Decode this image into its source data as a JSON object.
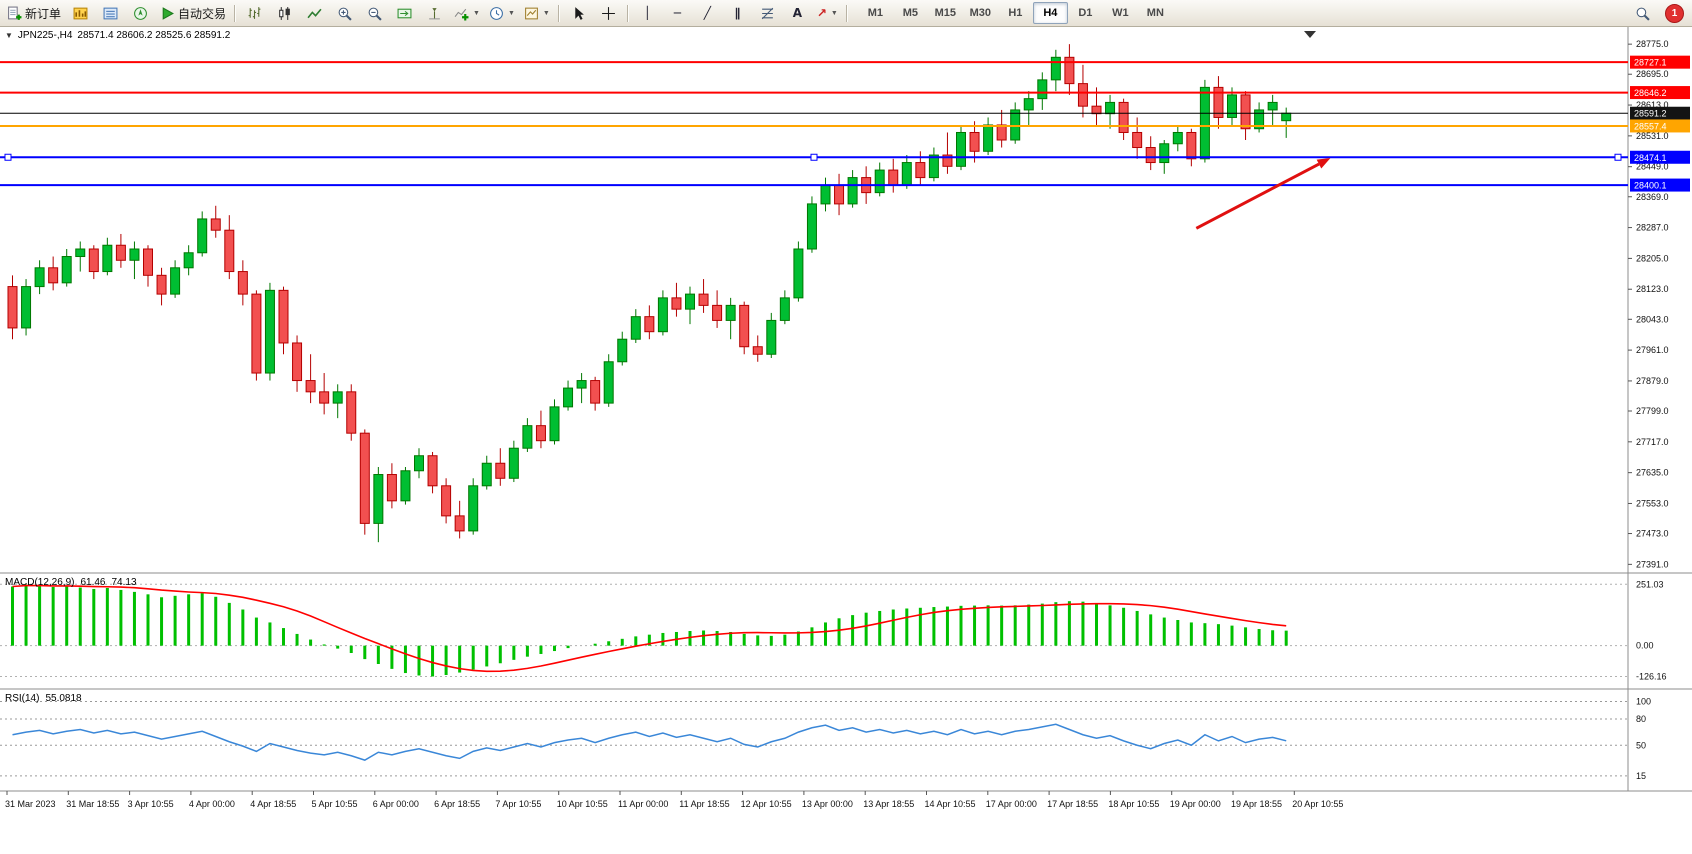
{
  "toolbar": {
    "new_order_label": "新订单",
    "auto_trading_label": "自动交易",
    "timeframes": [
      {
        "label": "M1",
        "active": false
      },
      {
        "label": "M5",
        "active": false
      },
      {
        "label": "M15",
        "active": false
      },
      {
        "label": "M30",
        "active": false
      },
      {
        "label": "H1",
        "active": false
      },
      {
        "label": "H4",
        "active": true
      },
      {
        "label": "D1",
        "active": false
      },
      {
        "label": "W1",
        "active": false
      },
      {
        "label": "MN",
        "active": false
      }
    ],
    "notification_count": "1"
  },
  "icons": {
    "collapse": "▼",
    "caret": "▼",
    "vertical_line": "│",
    "horizontal_line": "─",
    "trendline": "╱",
    "channel": "∥",
    "text_tool": "A",
    "arrow_tool": "↗",
    "crosshair": "+"
  },
  "chart": {
    "symbol_period": "JPN225-,H4",
    "ohlc": "28571.4 28606.2 28525.6 28591.2"
  },
  "chart_data": {
    "type": "candlestick",
    "symbol": "JPN225-",
    "timeframe": "H4",
    "up_color": "#00BE32",
    "up_border": "#007700",
    "down_color": "#F25050",
    "down_border": "#B40000",
    "y_scale": {
      "max": 28810,
      "min": 27368
    },
    "y_axis_ticks": [
      "28775.0",
      "28695.0",
      "28613.0",
      "28531.0",
      "28449.0",
      "28369.0",
      "28287.0",
      "28205.0",
      "28123.0",
      "28043.0",
      "27961.0",
      "27879.0",
      "27799.0",
      "27717.0",
      "27635.0",
      "27553.0",
      "27473.0",
      "27391.0"
    ],
    "price_lines": [
      {
        "price": 28727.1,
        "label": "28727.1",
        "color": "#FF0000",
        "width": 2
      },
      {
        "price": 28646.2,
        "label": "28646.2",
        "color": "#FF0000",
        "width": 2
      },
      {
        "price": 28591.2,
        "label": "28591.2",
        "color": "#000000",
        "width": 1,
        "badge": "#141414",
        "current": true
      },
      {
        "price": 28557.4,
        "label": "28557.4",
        "color": "#FFA500",
        "width": 2
      },
      {
        "price": 28474.1,
        "label": "28474.1",
        "color": "#0000FF",
        "width": 2,
        "selected": true
      },
      {
        "price": 28400.1,
        "label": "28400.1",
        "color": "#0000FF",
        "width": 2
      }
    ],
    "arrow": {
      "color": "#E01010",
      "from": {
        "bar": 87.7,
        "price": 28285
      },
      "to": {
        "bar": 97.6,
        "price": 28472
      }
    },
    "candles": [
      [
        28130,
        28160,
        27990,
        28020
      ],
      [
        28020,
        28150,
        28000,
        28130
      ],
      [
        28130,
        28200,
        28110,
        28180
      ],
      [
        28180,
        28210,
        28120,
        28140
      ],
      [
        28140,
        28230,
        28130,
        28210
      ],
      [
        28210,
        28250,
        28170,
        28230
      ],
      [
        28230,
        28240,
        28150,
        28170
      ],
      [
        28170,
        28260,
        28160,
        28240
      ],
      [
        28240,
        28270,
        28180,
        28200
      ],
      [
        28200,
        28250,
        28150,
        28230
      ],
      [
        28230,
        28240,
        28130,
        28160
      ],
      [
        28160,
        28180,
        28080,
        28110
      ],
      [
        28110,
        28200,
        28100,
        28180
      ],
      [
        28180,
        28240,
        28160,
        28220
      ],
      [
        28220,
        28330,
        28210,
        28310
      ],
      [
        28310,
        28345,
        28260,
        28280
      ],
      [
        28280,
        28320,
        28150,
        28170
      ],
      [
        28170,
        28200,
        28080,
        28110
      ],
      [
        28110,
        28120,
        27880,
        27900
      ],
      [
        27900,
        28140,
        27880,
        28120
      ],
      [
        28120,
        28130,
        27950,
        27980
      ],
      [
        27980,
        28000,
        27850,
        27880
      ],
      [
        27880,
        27950,
        27820,
        27850
      ],
      [
        27850,
        27900,
        27790,
        27820
      ],
      [
        27820,
        27870,
        27780,
        27850
      ],
      [
        27850,
        27870,
        27720,
        27740
      ],
      [
        27740,
        27750,
        27470,
        27500
      ],
      [
        27500,
        27650,
        27450,
        27630
      ],
      [
        27630,
        27660,
        27540,
        27560
      ],
      [
        27560,
        27650,
        27550,
        27640
      ],
      [
        27640,
        27700,
        27620,
        27680
      ],
      [
        27680,
        27690,
        27580,
        27600
      ],
      [
        27600,
        27620,
        27500,
        27520
      ],
      [
        27520,
        27560,
        27460,
        27480
      ],
      [
        27480,
        27620,
        27470,
        27600
      ],
      [
        27600,
        27680,
        27590,
        27660
      ],
      [
        27660,
        27700,
        27600,
        27620
      ],
      [
        27620,
        27720,
        27610,
        27700
      ],
      [
        27700,
        27780,
        27690,
        27760
      ],
      [
        27760,
        27800,
        27700,
        27720
      ],
      [
        27720,
        27830,
        27710,
        27810
      ],
      [
        27810,
        27880,
        27800,
        27860
      ],
      [
        27860,
        27900,
        27820,
        27880
      ],
      [
        27880,
        27890,
        27800,
        27820
      ],
      [
        27820,
        27950,
        27810,
        27930
      ],
      [
        27930,
        28010,
        27920,
        27990
      ],
      [
        27990,
        28070,
        27980,
        28050
      ],
      [
        28050,
        28080,
        27990,
        28010
      ],
      [
        28010,
        28120,
        28000,
        28100
      ],
      [
        28100,
        28140,
        28050,
        28070
      ],
      [
        28070,
        28130,
        28030,
        28110
      ],
      [
        28110,
        28150,
        28060,
        28080
      ],
      [
        28080,
        28120,
        28020,
        28040
      ],
      [
        28040,
        28100,
        27990,
        28080
      ],
      [
        28080,
        28090,
        27950,
        27970
      ],
      [
        27970,
        28000,
        27930,
        27950
      ],
      [
        27950,
        28060,
        27940,
        28040
      ],
      [
        28040,
        28120,
        28030,
        28100
      ],
      [
        28100,
        28250,
        28090,
        28230
      ],
      [
        28230,
        28370,
        28220,
        28350
      ],
      [
        28350,
        28420,
        28330,
        28400
      ],
      [
        28400,
        28430,
        28320,
        28350
      ],
      [
        28350,
        28440,
        28340,
        28420
      ],
      [
        28420,
        28450,
        28350,
        28380
      ],
      [
        28380,
        28460,
        28370,
        28440
      ],
      [
        28440,
        28470,
        28380,
        28400
      ],
      [
        28400,
        28480,
        28390,
        28460
      ],
      [
        28460,
        28490,
        28400,
        28420
      ],
      [
        28420,
        28500,
        28410,
        28480
      ],
      [
        28480,
        28540,
        28430,
        28450
      ],
      [
        28450,
        28560,
        28440,
        28540
      ],
      [
        28540,
        28570,
        28460,
        28490
      ],
      [
        28490,
        28580,
        28480,
        28560
      ],
      [
        28560,
        28600,
        28500,
        28520
      ],
      [
        28520,
        28620,
        28510,
        28600
      ],
      [
        28600,
        28650,
        28560,
        28630
      ],
      [
        28630,
        28700,
        28600,
        28680
      ],
      [
        28680,
        28760,
        28650,
        28740
      ],
      [
        28740,
        28775,
        28640,
        28670
      ],
      [
        28670,
        28720,
        28580,
        28610
      ],
      [
        28610,
        28660,
        28560,
        28590
      ],
      [
        28590,
        28640,
        28550,
        28620
      ],
      [
        28620,
        28630,
        28520,
        28540
      ],
      [
        28540,
        28580,
        28470,
        28500
      ],
      [
        28500,
        28530,
        28440,
        28460
      ],
      [
        28460,
        28520,
        28430,
        28510
      ],
      [
        28510,
        28560,
        28490,
        28540
      ],
      [
        28540,
        28550,
        28450,
        28470
      ],
      [
        28470,
        28680,
        28460,
        28660
      ],
      [
        28660,
        28690,
        28550,
        28580
      ],
      [
        28580,
        28660,
        28560,
        28640
      ],
      [
        28640,
        28650,
        28520,
        28550
      ],
      [
        28550,
        28620,
        28540,
        28600
      ],
      [
        28600,
        28640,
        28560,
        28620
      ],
      [
        28571.4,
        28606.2,
        28525.6,
        28591.2
      ]
    ]
  },
  "macd": {
    "title": "MACD(12,26,9)",
    "value_main": "61.46",
    "value_signal": "74.13",
    "histogram_color": "#00C000",
    "signal_color": "#FF0000",
    "scale": {
      "max": 285,
      "min": -165
    },
    "levels": [
      {
        "label": "251.03",
        "value": 251.03
      },
      {
        "label": "0.00",
        "value": 0
      },
      {
        "label": "-126.16",
        "value": -126.16
      }
    ],
    "histogram": [
      242,
      250,
      246,
      240,
      244,
      238,
      232,
      236,
      228,
      220,
      210,
      198,
      204,
      210,
      215,
      200,
      175,
      148,
      115,
      95,
      72,
      48,
      25,
      5,
      -12,
      -30,
      -55,
      -75,
      -95,
      -112,
      -122,
      -126,
      -120,
      -110,
      -98,
      -85,
      -72,
      -58,
      -45,
      -34,
      -22,
      -10,
      0,
      8,
      18,
      28,
      38,
      45,
      52,
      56,
      60,
      62,
      60,
      56,
      48,
      42,
      40,
      45,
      58,
      75,
      95,
      112,
      125,
      135,
      142,
      148,
      152,
      155,
      158,
      160,
      163,
      164,
      165,
      164,
      165,
      168,
      172,
      178,
      182,
      180,
      172,
      165,
      155,
      142,
      128,
      115,
      105,
      95,
      92,
      88,
      82,
      75,
      68,
      63,
      61.46
    ]
  },
  "rsi": {
    "title": "RSI(14)",
    "value": "55.0818",
    "line_color": "#3A87D8",
    "scale": {
      "max": 112,
      "min": 0
    },
    "levels": [
      {
        "label": "100",
        "value": 100
      },
      {
        "label": "80",
        "value": 80
      },
      {
        "label": "50",
        "value": 50
      },
      {
        "label": "15",
        "value": 15
      }
    ],
    "values": [
      62,
      65,
      67,
      63,
      66,
      68,
      64,
      67,
      63,
      65,
      61,
      57,
      60,
      63,
      66,
      60,
      54,
      49,
      43,
      52,
      48,
      44,
      41,
      39,
      42,
      38,
      33,
      42,
      39,
      43,
      46,
      42,
      38,
      35,
      43,
      47,
      44,
      48,
      52,
      48,
      53,
      56,
      58,
      53,
      58,
      62,
      65,
      60,
      64,
      59,
      62,
      58,
      54,
      58,
      51,
      48,
      54,
      58,
      65,
      70,
      73,
      67,
      70,
      65,
      68,
      64,
      67,
      63,
      66,
      62,
      68,
      63,
      66,
      62,
      66,
      68,
      71,
      74,
      68,
      62,
      58,
      61,
      55,
      50,
      46,
      52,
      56,
      50,
      62,
      55,
      60,
      53,
      57,
      59,
      55.08
    ]
  },
  "time_axis": {
    "labels": [
      "31 Mar 2023",
      "31 Mar 18:55",
      "3 Apr 10:55",
      "4 Apr 00:00",
      "4 Apr 18:55",
      "5 Apr 10:55",
      "6 Apr 00:00",
      "6 Apr 18:55",
      "7 Apr 10:55",
      "10 Apr 10:55",
      "11 Apr 00:00",
      "11 Apr 18:55",
      "12 Apr 10:55",
      "13 Apr 00:00",
      "13 Apr 18:55",
      "14 Apr 10:55",
      "17 Apr 00:00",
      "17 Apr 18:55",
      "18 Apr 10:55",
      "19 Apr 00:00",
      "19 Apr 18:55",
      "20 Apr 10:55"
    ]
  }
}
